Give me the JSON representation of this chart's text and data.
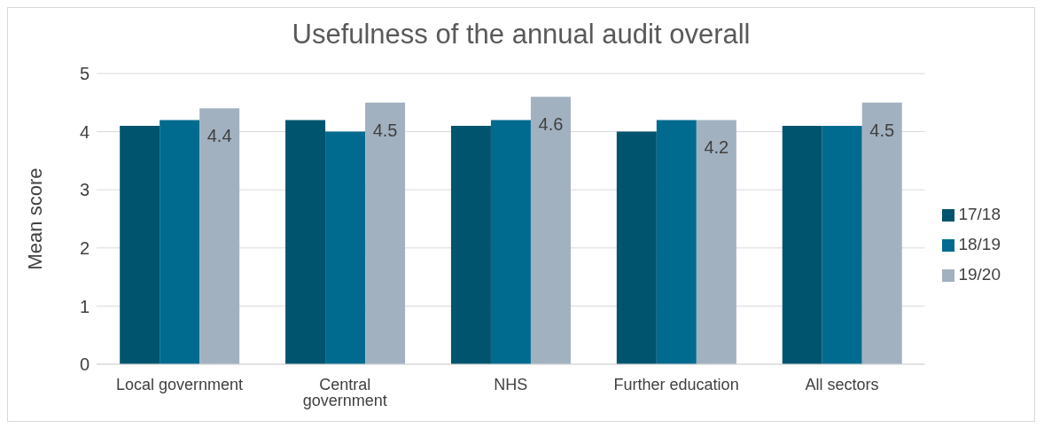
{
  "chart_data": {
    "type": "bar",
    "title": "Usefulness of the annual audit overall",
    "ylabel": "Mean score",
    "categories": [
      "Local government",
      "Central government",
      "NHS",
      "Further education",
      "All sectors"
    ],
    "series": [
      {
        "name": "17/18",
        "color": "#00546e",
        "values": [
          4.1,
          4.2,
          4.1,
          4.0,
          4.1
        ]
      },
      {
        "name": "18/19",
        "color": "#006b8f",
        "values": [
          4.2,
          4.0,
          4.2,
          4.2,
          4.1
        ]
      },
      {
        "name": "19/20",
        "color": "#a1b1c0",
        "values": [
          4.4,
          4.5,
          4.6,
          4.2,
          4.5
        ],
        "value_labels": [
          "4.4",
          "4.5",
          "4.6",
          "4.2",
          "4.5"
        ]
      }
    ],
    "ylim": [
      0,
      5
    ],
    "yticks": [
      0,
      1,
      2,
      3,
      4,
      5
    ],
    "grid": "y",
    "legend": "right"
  }
}
